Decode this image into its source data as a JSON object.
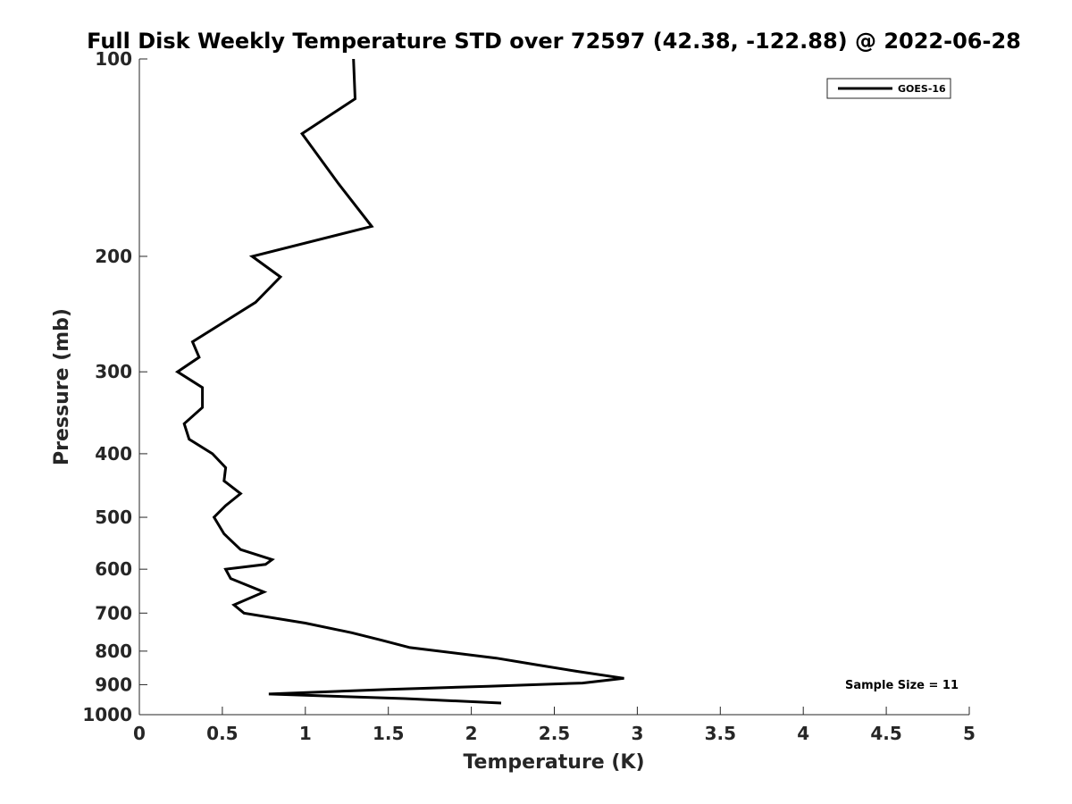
{
  "chart_data": {
    "type": "line",
    "title": "Full Disk Weekly Temperature STD over 72597 (42.38, -122.88) @ 2022-06-28",
    "xlabel": "Temperature (K)",
    "ylabel": "Pressure (mb)",
    "xlim": [
      0,
      5
    ],
    "ylim": [
      100,
      1000
    ],
    "yscale": "log",
    "y_reversed": true,
    "x_ticks": [
      "0",
      "0.5",
      "1",
      "1.5",
      "2",
      "2.5",
      "3",
      "3.5",
      "4",
      "4.5",
      "5"
    ],
    "y_ticks": [
      "100",
      "200",
      "300",
      "400",
      "500",
      "600",
      "700",
      "800",
      "900",
      "1000"
    ],
    "grid": false,
    "legend": {
      "placement": "top-right",
      "entries": [
        "GOES-16"
      ]
    },
    "annotation": "Sample Size = 11",
    "series": [
      {
        "name": "GOES-16",
        "color": "#000000",
        "x": [
          1.29,
          1.3,
          0.98,
          1.2,
          1.4,
          0.68,
          0.85,
          0.7,
          0.32,
          0.36,
          0.23,
          0.38,
          0.38,
          0.27,
          0.3,
          0.44,
          0.52,
          0.51,
          0.61,
          0.52,
          0.45,
          0.51,
          0.61,
          0.8,
          0.76,
          0.52,
          0.55,
          0.75,
          0.57,
          0.63,
          1.0,
          1.28,
          1.46,
          1.63,
          2.15,
          2.4,
          2.65,
          2.92,
          2.67,
          2.1,
          1.5,
          0.78,
          1.6,
          2.18
        ],
        "y": [
          100,
          115,
          130,
          155,
          180,
          200,
          215,
          235,
          270,
          285,
          300,
          317,
          340,
          360,
          380,
          400,
          420,
          440,
          460,
          480,
          500,
          530,
          560,
          580,
          590,
          600,
          620,
          650,
          680,
          700,
          725,
          750,
          770,
          790,
          820,
          840,
          860,
          880,
          895,
          905,
          915,
          930,
          945,
          960
        ]
      }
    ]
  }
}
